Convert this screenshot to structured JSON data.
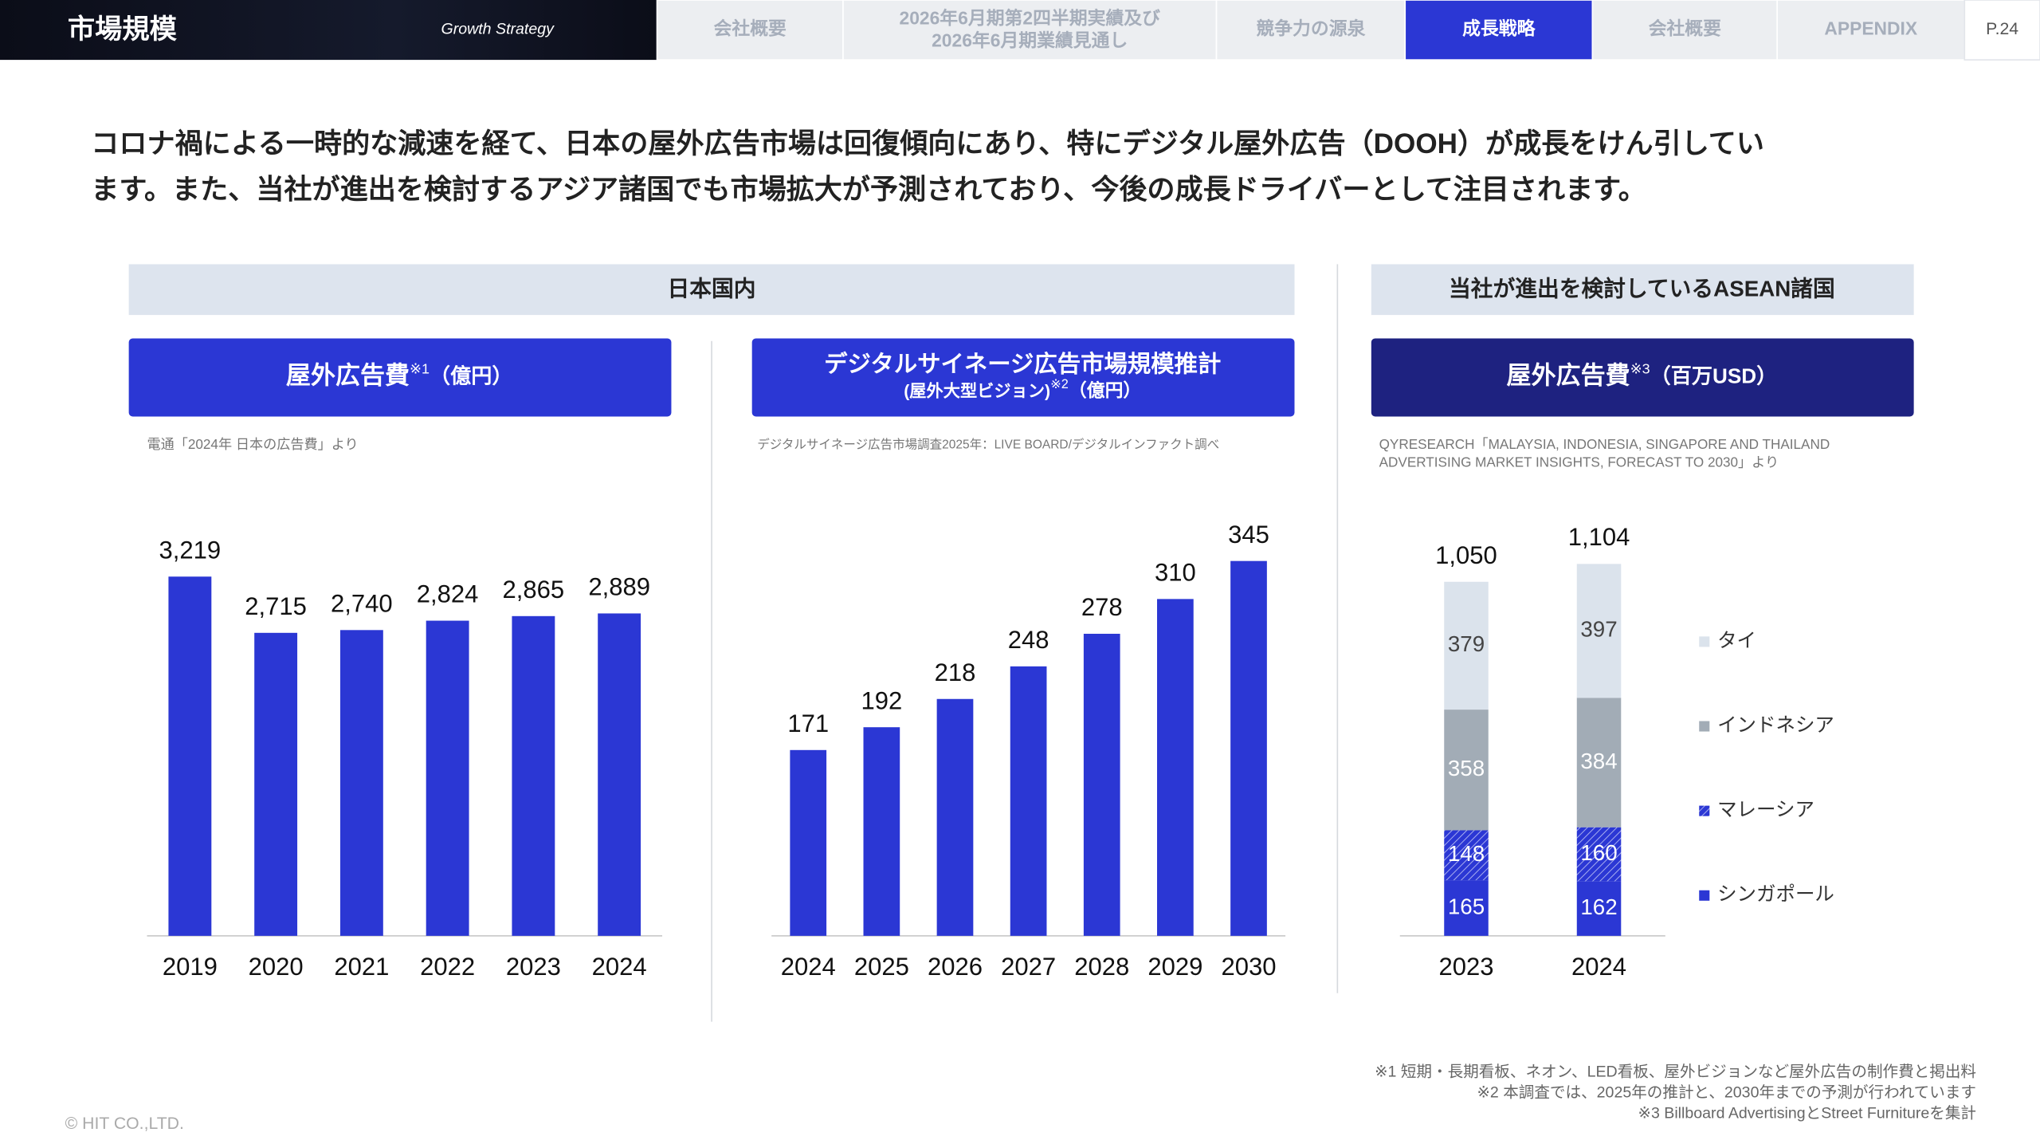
{
  "header": {
    "title": "市場規模",
    "subtitle": "Growth Strategy",
    "tabs": [
      "会社概要",
      [
        "2026年6月期第2四半期実績及び",
        "2026年6月期業績見通し"
      ],
      "競争力の源泉",
      "成長戦略",
      "会社概要",
      "APPENDIX"
    ],
    "page": "P.24"
  },
  "lead": [
    "コロナ禍による一時的な減速を経て、日本の屋外広告市場は回復傾向にあり、特にデジタル屋外広告（DOOH）が成長をけん引してい",
    "ます。また、当社が進出を検討するアジア諸国でも市場拡大が予測されており、今後の成長ドライバーとして注目されます。"
  ],
  "sections": [
    "日本国内",
    "当社が進出を検討しているASEAN諸国"
  ],
  "chart_data": [
    {
      "type": "bar",
      "title": "屋外広告費",
      "note": "※1",
      "unit": "（億円）",
      "source": [
        "電通「2024年 日本の広告費」より"
      ],
      "categories": [
        "2019",
        "2020",
        "2021",
        "2022",
        "2023",
        "2024"
      ],
      "values": [
        3219,
        2715,
        2740,
        2824,
        2865,
        2889
      ],
      "value_labels": [
        "3,219",
        "2,715",
        "2,740",
        "2,824",
        "2,865",
        "2,889"
      ],
      "color": "#2b37d4"
    },
    {
      "type": "bar",
      "title": "デジタルサイネージ広告市場規模推計",
      "subtitle": "(屋外大型ビジョン)",
      "note": "※2",
      "unit": "（億円）",
      "source": [
        "デジタルサイネージ広告市場調査2025年：LIVE BOARD/デジタルインファクト調べ"
      ],
      "categories": [
        "2024",
        "2025",
        "2026",
        "2027",
        "2028",
        "2029",
        "2030"
      ],
      "values": [
        171,
        192,
        218,
        248,
        278,
        310,
        345
      ],
      "color": "#2b37d4"
    },
    {
      "type": "stacked_bar",
      "title": "屋外広告費",
      "note": "※3",
      "unit": "（百万USD）",
      "source": [
        "QYRESEARCH「MALAYSIA, INDONESIA, SINGAPORE AND THAILAND",
        "ADVERTISING MARKET INSIGHTS, FORECAST TO 2030」より"
      ],
      "categories": [
        "2023",
        "2024"
      ],
      "series": [
        {
          "name": "シンガポール",
          "color": "#2b37d4",
          "values": [
            165,
            162
          ]
        },
        {
          "name": "マレーシア",
          "color": "#2b37d4",
          "pattern": "hatch",
          "values": [
            148,
            160
          ]
        },
        {
          "name": "インドネシア",
          "color": "#a2acb6",
          "values": [
            358,
            384
          ]
        },
        {
          "name": "タイ",
          "color": "#dbe3ec",
          "values": [
            379,
            397
          ]
        }
      ],
      "totals": [
        1050,
        1104
      ],
      "total_labels": [
        "1,050",
        "1,104"
      ]
    }
  ],
  "footnotes": [
    "※1 短期・長期看板、ネオン、LED看板、屋外ビジョンなど屋外広告の制作費と掲出料",
    "※2 本調査では、2025年の推計と、2030年までの予測が行われています",
    "※3 Billboard AdvertisingとStreet Furnitureを集計"
  ],
  "copyright": "© HIT CO.,LTD."
}
